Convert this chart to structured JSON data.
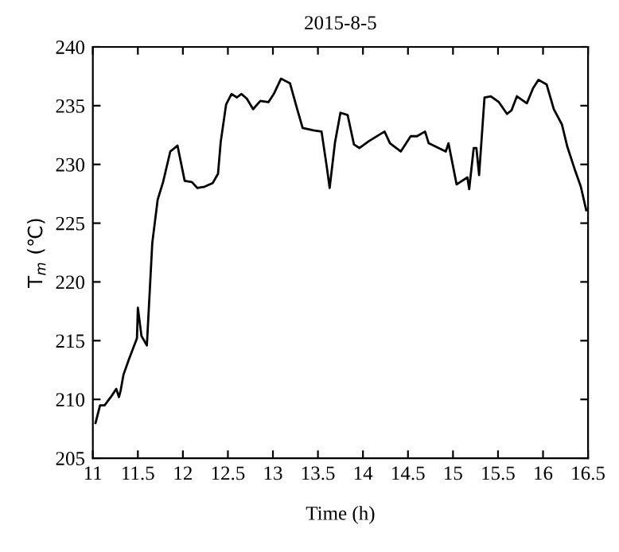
{
  "chart_data": {
    "type": "line",
    "title": "2015-8-5",
    "xlabel": "Time (h)",
    "ylabel": "T$_{m}$ (℃)",
    "xlim": [
      11,
      16.5
    ],
    "xticks": [
      11,
      11.5,
      12,
      12.5,
      13,
      13.5,
      14,
      14.5,
      15,
      15.5,
      16,
      16.5
    ],
    "ylim": [
      205,
      240
    ],
    "yticks": [
      205,
      210,
      215,
      220,
      225,
      230,
      235,
      240
    ],
    "grid": false,
    "marker": "none",
    "line_style": "solid",
    "series": [
      {
        "color": "#000000",
        "x": [
          11.03,
          11.08,
          11.13,
          11.2,
          11.26,
          11.29,
          11.31,
          11.34,
          11.4,
          11.49,
          11.5,
          11.54,
          11.6,
          11.66,
          11.72,
          11.78,
          11.86,
          11.94,
          12.02,
          12.1,
          12.16,
          12.24,
          12.33,
          12.39,
          12.42,
          12.48,
          12.54,
          12.6,
          12.65,
          12.71,
          12.78,
          12.86,
          12.95,
          13.01,
          13.09,
          13.19,
          13.27,
          13.33,
          13.45,
          13.54,
          13.6,
          13.63,
          13.69,
          13.75,
          13.83,
          13.9,
          13.96,
          14.07,
          14.24,
          14.3,
          14.42,
          14.53,
          14.6,
          14.69,
          14.73,
          14.92,
          14.95,
          15.04,
          15.16,
          15.18,
          15.23,
          15.26,
          15.29,
          15.35,
          15.42,
          15.51,
          15.6,
          15.65,
          15.71,
          15.82,
          15.89,
          15.95,
          16.04,
          16.12,
          16.21,
          16.27,
          16.36,
          16.42,
          16.48
        ],
        "values": [
          208.0,
          209.5,
          209.5,
          210.2,
          210.9,
          210.2,
          210.8,
          212.1,
          213.4,
          215.2,
          217.8,
          215.4,
          214.6,
          223.3,
          227.0,
          228.5,
          231.1,
          231.6,
          228.6,
          228.5,
          228.0,
          228.1,
          228.4,
          229.2,
          231.9,
          235.1,
          236.0,
          235.7,
          236.0,
          235.6,
          234.7,
          235.4,
          235.3,
          236.0,
          237.3,
          236.9,
          234.7,
          233.1,
          232.9,
          232.8,
          229.7,
          228.0,
          231.9,
          234.4,
          234.2,
          231.7,
          231.4,
          232.0,
          232.8,
          231.8,
          231.1,
          232.4,
          232.4,
          232.8,
          231.8,
          231.1,
          231.8,
          228.3,
          228.9,
          227.9,
          231.4,
          231.4,
          229.1,
          235.7,
          235.8,
          235.3,
          234.3,
          234.6,
          235.8,
          235.2,
          236.5,
          237.2,
          236.8,
          234.7,
          233.4,
          231.5,
          229.4,
          228.1,
          226.1
        ]
      }
    ]
  }
}
